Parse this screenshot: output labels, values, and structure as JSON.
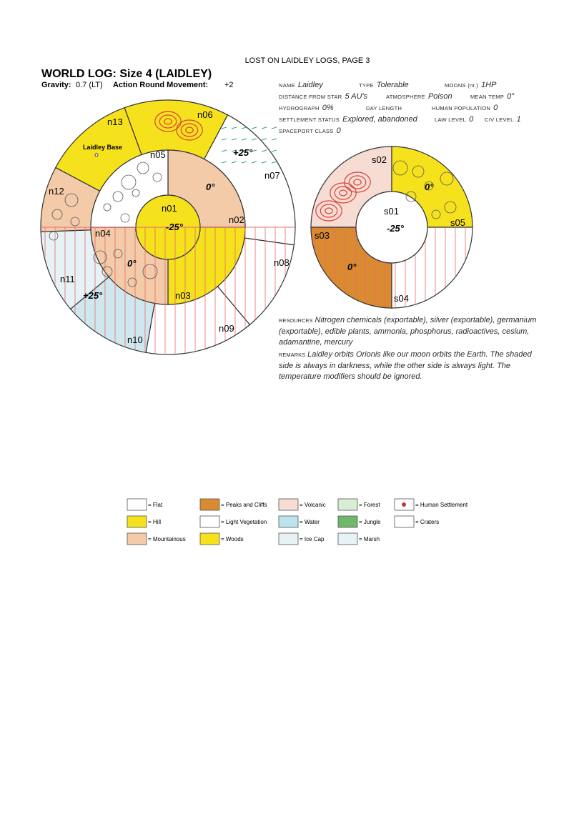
{
  "header": {
    "running_title": "LOST ON LAIDLEY LOGS, PAGE 3",
    "title": "WORLD LOG: Size 4 (LAIDLEY)",
    "gravity_label": "Gravity:",
    "gravity": "0.7 (LT)",
    "movement_label": "Action Round Movement:",
    "movement": "+2"
  },
  "stats": [
    {
      "label": "NAME",
      "value": "Laidley"
    },
    {
      "label": "TYPE",
      "value": "Tolerable"
    },
    {
      "label": "MOONS (nr.)",
      "value": "1HP"
    },
    {
      "label": "DISTANCE FROM STAR",
      "value": "5 AU's"
    },
    {
      "label": "ATMOSPHERE",
      "value": "Poison"
    },
    {
      "label": "MEAN TEMP",
      "value": "0°"
    },
    {
      "label": "HYDROGRAPH",
      "value": "0%"
    },
    {
      "label": "DAY LENGTH"
    },
    {
      "label": "HUMAN POPULATION",
      "value": "0"
    },
    {
      "label": "SETTLEMENT STATUS",
      "value": "Explored, abandoned"
    },
    {
      "label": "LAW LEVEL",
      "value": "0"
    },
    {
      "label": "CIV LEVEL",
      "value": "1"
    },
    {
      "label": "SPACEPORT CLASS",
      "value": "0"
    }
  ],
  "north": {
    "hexes": [
      "n01",
      "n02",
      "n03",
      "n04",
      "n05",
      "n06",
      "n07",
      "n08",
      "n09",
      "n10",
      "n11",
      "n12",
      "n13"
    ],
    "temperatures": [
      "-25°",
      "0°",
      "+25°",
      "0°",
      "+25°"
    ],
    "base": "Laidley Base"
  },
  "south": {
    "hexes": [
      "s01",
      "s02",
      "s03",
      "s04",
      "s05"
    ],
    "temperatures": [
      "-25°",
      "0°",
      "0°"
    ]
  },
  "resources": {
    "label": "RESOURCES",
    "text": "Nitrogen chemicals (exportable), silver (exportable), germanium (exportable), edible plants, ammonia, phosphorus, radioactives, cesium, adamantine, mercury"
  },
  "remarks": {
    "label": "REMARKS",
    "text": "Laidley orbits Orionis like our moon orbits the Earth. The shaded side is always in darkness, while the other side is always light. The temperature modifiers should be ignored."
  },
  "legend": [
    "= Flat",
    "= Hill",
    "= Mountainous",
    "= Peaks and Cliffs",
    "= Light Vegetation",
    "= Woods",
    "= Volcanic",
    "= Water",
    "= Ice Cap",
    "= Forest",
    "= Jungle",
    "= Marsh",
    "= Human Settlement",
    "= Craters"
  ]
}
